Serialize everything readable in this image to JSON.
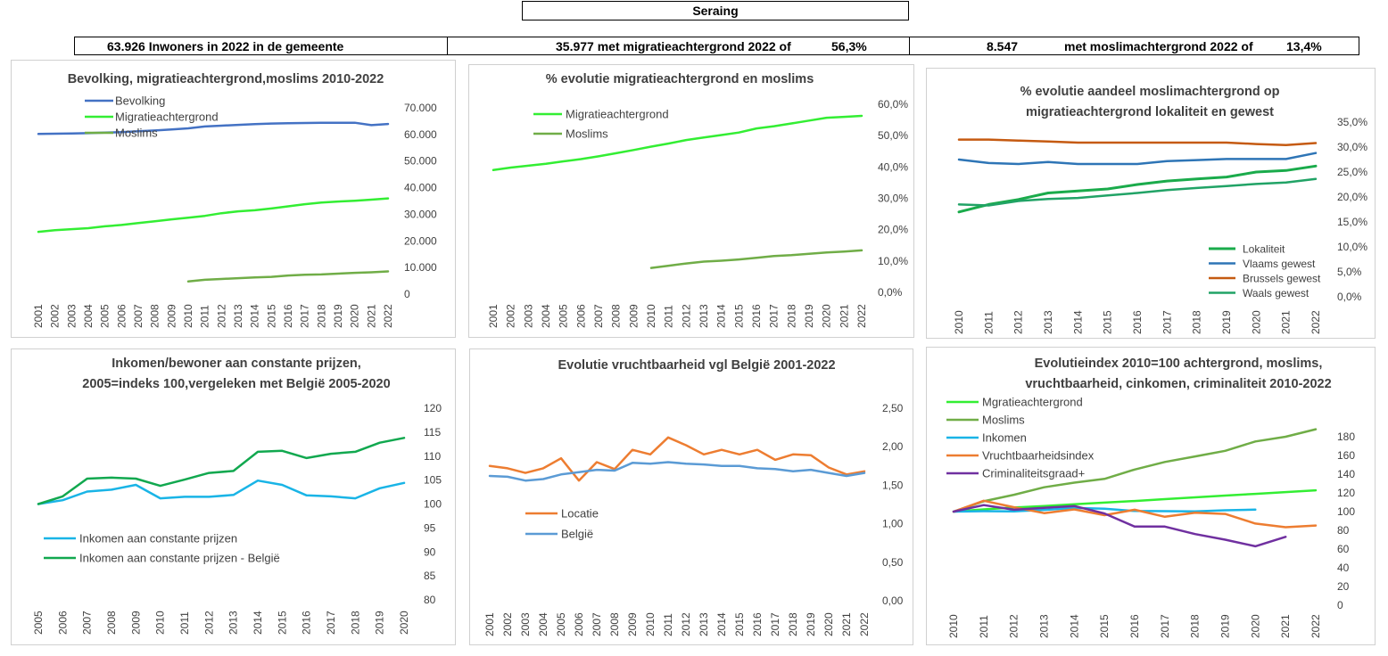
{
  "header": {
    "title": "Seraing",
    "row": {
      "inwoners": "63.926 Inwoners in 2022 in de gemeente",
      "migratie": "35.977 met migratieachtergrond 2022 of",
      "migratie_pct": "56,3%",
      "moslim_count": "8.547",
      "moslim_text": "met moslimachtergrond 2022 of",
      "moslim_pct": "13,4%"
    }
  },
  "colors": {
    "bevolking": "#4472c4",
    "migratie": "#33ee33",
    "moslims": "#70ad47",
    "lokaliteit": "#1aab4b",
    "vlaams": "#2e75b6",
    "brussels": "#c55a11",
    "waals": "#21a366",
    "inkomen": "#19b4e6",
    "inkomen_be": "#11a84f",
    "locatie": "#ed7d31",
    "belgie": "#5b9bd5",
    "vruchtbaarheid": "#ed7d31",
    "criminaliteit": "#7030a0"
  },
  "chart_data": [
    {
      "type": "line",
      "title": "Bevolking, migratieachtergrond,moslims  2010-2022",
      "x": [
        "2001",
        "2002",
        "2003",
        "2004",
        "2005",
        "2006",
        "2007",
        "2008",
        "2009",
        "2010",
        "2011",
        "2012",
        "2013",
        "2014",
        "2015",
        "2016",
        "2017",
        "2018",
        "2019",
        "2020",
        "2021",
        "2022"
      ],
      "yticks": [
        "0",
        "10.000",
        "20.000",
        "30.000",
        "40.000",
        "50.000",
        "60.000",
        "70.000"
      ],
      "ylim": [
        0,
        70000
      ],
      "legend_position": "top-left",
      "series": [
        {
          "name": "Bevolking",
          "color": "bevolking",
          "values": [
            60200,
            60300,
            60400,
            60500,
            60700,
            60900,
            61200,
            61500,
            61900,
            62300,
            63000,
            63300,
            63600,
            63900,
            64100,
            64200,
            64300,
            64400,
            64400,
            64400,
            63500,
            63926
          ]
        },
        {
          "name": "Migratieachtergrond",
          "color": "migratie",
          "values": [
            23400,
            24000,
            24400,
            24800,
            25500,
            26000,
            26700,
            27400,
            28100,
            28700,
            29400,
            30400,
            31100,
            31500,
            32200,
            33000,
            33800,
            34400,
            34800,
            35100,
            35500,
            35977
          ]
        },
        {
          "name": "Moslims",
          "color": "moslims",
          "values": [
            null,
            null,
            null,
            null,
            null,
            null,
            null,
            null,
            null,
            4800,
            5400,
            5700,
            6000,
            6300,
            6500,
            7000,
            7300,
            7400,
            7700,
            8000,
            8200,
            8547
          ]
        }
      ]
    },
    {
      "type": "line",
      "title": "% evolutie migratieachtergrond  en moslims",
      "x": [
        "2001",
        "2002",
        "2003",
        "2004",
        "2005",
        "2006",
        "2007",
        "2008",
        "2009",
        "2010",
        "2011",
        "2012",
        "2013",
        "2014",
        "2015",
        "2016",
        "2017",
        "2018",
        "2019",
        "2020",
        "2021",
        "2022"
      ],
      "yticks": [
        "0,0%",
        "10,0%",
        "20,0%",
        "30,0%",
        "40,0%",
        "50,0%",
        "60,0%"
      ],
      "ylim": [
        0,
        60
      ],
      "legend_position": "top-left",
      "series": [
        {
          "name": "Migratieachtergrond",
          "color": "migratie",
          "values": [
            39.0,
            39.8,
            40.4,
            41.0,
            41.8,
            42.5,
            43.4,
            44.4,
            45.4,
            46.5,
            47.5,
            48.6,
            49.4,
            50.2,
            51.0,
            52.3,
            53.0,
            53.9,
            54.8,
            55.7,
            56.0,
            56.3
          ]
        },
        {
          "name": "Moslims",
          "color": "moslims",
          "values": [
            null,
            null,
            null,
            null,
            null,
            null,
            null,
            null,
            null,
            7.8,
            8.5,
            9.2,
            9.8,
            10.1,
            10.5,
            11.0,
            11.6,
            11.9,
            12.3,
            12.7,
            13.0,
            13.4
          ]
        }
      ]
    },
    {
      "type": "line",
      "title": [
        "% evolutie aandeel moslimachtergrond op",
        "migratieachtergrond lokaliteit en gewest"
      ],
      "x": [
        "2010",
        "2011",
        "2012",
        "2013",
        "2014",
        "2015",
        "2016",
        "2017",
        "2018",
        "2019",
        "2020",
        "2021",
        "2022"
      ],
      "yticks": [
        "0,0%",
        "5,0%",
        "10,0%",
        "15,0%",
        "20,0%",
        "25,0%",
        "30,0%",
        "35,0%"
      ],
      "ylim": [
        0,
        35
      ],
      "legend_position": "bottom-right",
      "series": [
        {
          "name": "Lokaliteit",
          "color": "lokaliteit",
          "width": 3,
          "values": [
            17.0,
            18.5,
            19.5,
            20.8,
            21.2,
            21.6,
            22.5,
            23.2,
            23.6,
            24.0,
            25.0,
            25.3,
            26.2
          ]
        },
        {
          "name": "Vlaams gewest",
          "color": "vlaams",
          "values": [
            27.5,
            26.8,
            26.6,
            27.0,
            26.6,
            26.6,
            26.6,
            27.2,
            27.4,
            27.6,
            27.6,
            27.6,
            28.8
          ]
        },
        {
          "name": "Brussels gewest",
          "color": "brussels",
          "values": [
            31.5,
            31.5,
            31.3,
            31.1,
            30.9,
            30.9,
            30.9,
            30.9,
            30.9,
            30.9,
            30.6,
            30.4,
            30.8
          ]
        },
        {
          "name": "Waals gewest",
          "color": "waals",
          "values": [
            18.5,
            18.3,
            19.2,
            19.6,
            19.8,
            20.3,
            20.8,
            21.4,
            21.8,
            22.2,
            22.6,
            22.9,
            23.6
          ]
        }
      ]
    },
    {
      "type": "line",
      "title": [
        "Inkomen/bewoner aan constante prijzen,",
        "2005=indeks 100,vergeleken met België 2005-2020"
      ],
      "x": [
        "2005",
        "2006",
        "2007",
        "2008",
        "2009",
        "2010",
        "2011",
        "2012",
        "2013",
        "2014",
        "2015",
        "2016",
        "2017",
        "2018",
        "2019",
        "2020"
      ],
      "yticks": [
        "80",
        "85",
        "90",
        "95",
        "100",
        "105",
        "110",
        "115",
        "120"
      ],
      "ylim": [
        80,
        120
      ],
      "legend_position": "bottom-left",
      "series": [
        {
          "name": "Inkomen aan constante prijzen",
          "color": "inkomen",
          "values": [
            100,
            100.8,
            102.6,
            103.0,
            104.0,
            101.2,
            101.5,
            101.5,
            101.9,
            104.9,
            104.0,
            101.8,
            101.6,
            101.2,
            103.3,
            104.4
          ]
        },
        {
          "name": "Inkomen aan constante prijzen - België",
          "color": "inkomen_be",
          "values": [
            100,
            101.6,
            105.3,
            105.5,
            105.3,
            103.8,
            105.1,
            106.5,
            106.9,
            110.9,
            111.1,
            109.6,
            110.5,
            110.9,
            112.8,
            113.8
          ]
        }
      ]
    },
    {
      "type": "line",
      "title": "Evolutie vruchtbaarheid vgl België 2001-2022",
      "x": [
        "2001",
        "2002",
        "2003",
        "2004",
        "2005",
        "2006",
        "2007",
        "2008",
        "2009",
        "2010",
        "2011",
        "2012",
        "2013",
        "2014",
        "2015",
        "2016",
        "2017",
        "2018",
        "2019",
        "2020",
        "2021",
        "2022"
      ],
      "yticks": [
        "0,00",
        "0,50",
        "1,00",
        "1,50",
        "2,00",
        "2,50"
      ],
      "ylim": [
        0,
        2.5
      ],
      "legend_position": "bottom-left",
      "series": [
        {
          "name": "Locatie",
          "color": "locatie",
          "values": [
            1.75,
            1.72,
            1.66,
            1.72,
            1.85,
            1.56,
            1.8,
            1.71,
            1.96,
            1.9,
            2.12,
            2.02,
            1.9,
            1.96,
            1.9,
            1.96,
            1.83,
            1.9,
            1.89,
            1.73,
            1.64,
            1.68
          ]
        },
        {
          "name": "België",
          "color": "belgie",
          "values": [
            1.62,
            1.61,
            1.56,
            1.58,
            1.64,
            1.67,
            1.7,
            1.69,
            1.79,
            1.78,
            1.8,
            1.78,
            1.77,
            1.75,
            1.75,
            1.72,
            1.71,
            1.68,
            1.7,
            1.66,
            1.62,
            1.66
          ]
        }
      ]
    },
    {
      "type": "line",
      "title": [
        "Evolutieindex 2010=100 achtergrond, moslims,",
        "vruchtbaarheid, cinkomen, criminaliteit  2010-2022"
      ],
      "x": [
        "2010",
        "2011",
        "2012",
        "2013",
        "2014",
        "2015",
        "2016",
        "2017",
        "2018",
        "2019",
        "2020",
        "2021",
        "2022"
      ],
      "yticks": [
        "0",
        "20",
        "40",
        "60",
        "80",
        "100",
        "120",
        "140",
        "160",
        "180"
      ],
      "ylim": [
        0,
        180
      ],
      "legend_position": "top-left",
      "series": [
        {
          "name": "Mgratieachtergrond",
          "color": "migratie",
          "values": [
            100,
            102.4,
            104.4,
            106.0,
            107.8,
            109.6,
            111.3,
            113.3,
            115.2,
            117.1,
            119.0,
            120.9,
            122.8
          ]
        },
        {
          "name": "Moslims",
          "color": "moslims",
          "values": [
            100,
            111,
            118,
            126,
            131,
            135,
            145,
            153,
            159,
            165,
            175,
            180,
            188
          ]
        },
        {
          "name": "Inkomen",
          "color": "inkomen",
          "values": [
            100,
            100.5,
            100.3,
            101.8,
            103.9,
            103.1,
            100.7,
            100.5,
            100.3,
            101.4,
            102.1,
            null,
            null
          ]
        },
        {
          "name": "Vruchtbaarheidsindex",
          "color": "vruchtbaarheid",
          "values": [
            100,
            111.6,
            104.7,
            98.4,
            102.4,
            96.2,
            102.0,
            94.5,
            98.9,
            97.5,
            87.2,
            83.3,
            85.1
          ]
        },
        {
          "name": "Criminaliteitsgraad+",
          "color": "criminaliteit",
          "values": [
            100,
            107,
            102,
            104,
            106,
            98,
            84,
            84,
            76,
            70,
            63,
            73,
            null
          ]
        }
      ]
    }
  ]
}
